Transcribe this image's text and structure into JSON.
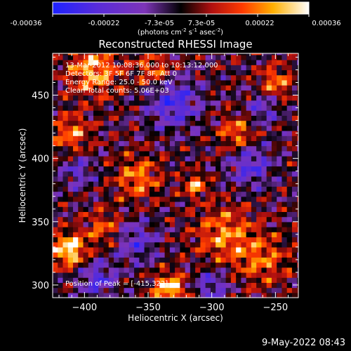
{
  "figure": {
    "title": "Reconstructed RHESSI Image",
    "colorbar": {
      "ticks": [
        "-0.00036",
        "-0.00022",
        "-7.3e-05",
        "7.3e-05",
        "0.00022",
        "0.00036"
      ],
      "label_main": "(photons cm",
      "label_sup1": "-2",
      "label_mid1": " s",
      "label_sup2": "-1",
      "label_mid2": " asec",
      "label_sup3": "-2",
      "label_end": ")"
    },
    "annotations": {
      "time": "13-Mar-2012 10:08:36.000 to 10:13:12.000",
      "detectors": "Detectors: 3F 5F 6F 7F 8F, Att 0",
      "energy": "Energy Range: 25.0 - 50.0 keV",
      "clean": "Clean    Total counts: 5.06E+03",
      "peak": "Position of Peak = [-415,322]"
    },
    "timestamp": "9-May-2022 08:43",
    "colors": {
      "background": "#000000",
      "foreground": "#ffffff"
    }
  },
  "chart_data": {
    "type": "heatmap",
    "title": "Reconstructed RHESSI Image",
    "xlabel": "Heliocentric X (arcsec)",
    "ylabel": "Heliocentric Y (arcsec)",
    "xlim": [
      -425,
      -232
    ],
    "ylim": [
      290,
      483
    ],
    "xticks": [
      -400,
      -350,
      -300,
      -250
    ],
    "yticks": [
      300,
      350,
      400,
      450
    ],
    "colorbar_range": [
      -0.00036,
      0.00036
    ],
    "colormap": "blue-purple-black-red-yellow-white",
    "peak": [
      -415,
      322
    ],
    "hotspots": [
      {
        "x": -412,
        "y": 328,
        "amp": 1.0,
        "s": 9
      },
      {
        "x": -333,
        "y": 297,
        "amp": 0.9,
        "s": 9
      },
      {
        "x": -313,
        "y": 379,
        "amp": 0.75,
        "s": 6
      },
      {
        "x": -393,
        "y": 470,
        "amp": 0.75,
        "s": 14
      },
      {
        "x": -410,
        "y": 420,
        "amp": 0.6,
        "s": 10
      },
      {
        "x": -358,
        "y": 385,
        "amp": 0.6,
        "s": 12
      },
      {
        "x": -290,
        "y": 340,
        "amp": 0.6,
        "s": 16
      },
      {
        "x": -260,
        "y": 320,
        "amp": 0.5,
        "s": 14
      },
      {
        "x": -345,
        "y": 470,
        "amp": 0.55,
        "s": 10
      },
      {
        "x": -280,
        "y": 420,
        "amp": 0.6,
        "s": 10
      },
      {
        "x": -250,
        "y": 460,
        "amp": 0.6,
        "s": 9
      },
      {
        "x": -385,
        "y": 345,
        "amp": 0.5,
        "s": 10
      }
    ],
    "coldspots": [
      {
        "x": -330,
        "y": 445,
        "amp": -0.7,
        "s": 14
      },
      {
        "x": -270,
        "y": 395,
        "amp": -0.6,
        "s": 12
      },
      {
        "x": -390,
        "y": 305,
        "amp": -0.6,
        "s": 10
      },
      {
        "x": -300,
        "y": 300,
        "amp": -0.5,
        "s": 10
      },
      {
        "x": -260,
        "y": 440,
        "amp": -0.5,
        "s": 9
      },
      {
        "x": -405,
        "y": 390,
        "amp": -0.45,
        "s": 9
      },
      {
        "x": -360,
        "y": 335,
        "amp": -0.5,
        "s": 12
      }
    ]
  }
}
